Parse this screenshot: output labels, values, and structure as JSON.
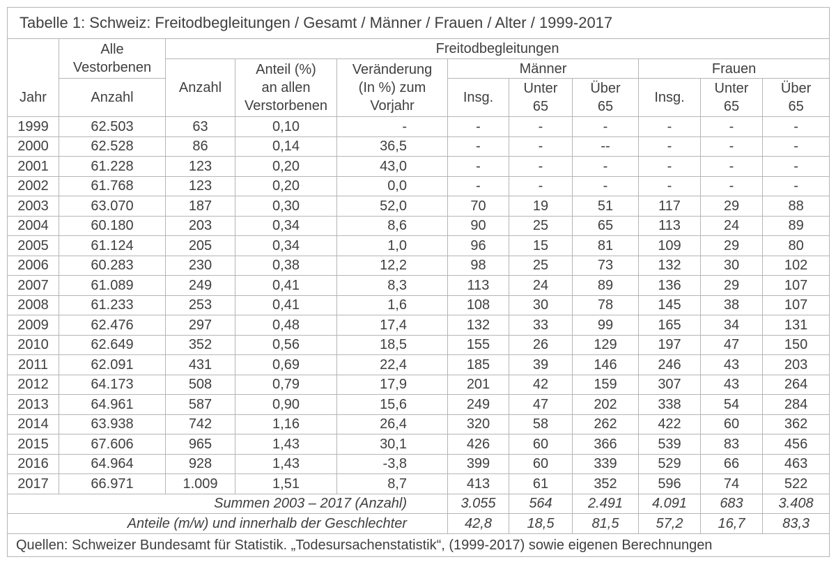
{
  "colors": {
    "text": "#3f3f3f",
    "border": "#b5b5b5"
  },
  "title": "Tabelle 1: Schweiz: Freitodbegleitungen / Gesamt / Männer / Frauen / Alter / 1999-2017",
  "header": {
    "jahr": "Jahr",
    "alle_verstorbenen": "Alle\nVestorbenen",
    "alle_anzahl": "Anzahl",
    "freitodbegleitungen": "Freitodbegleitungen",
    "anzahl": "Anzahl",
    "anteil": "Anteil (%)\nan allen\nVerstorbenen",
    "veraenderung": "Veränderung\n(In %) zum\nVorjahr",
    "maenner": "Männer",
    "frauen": "Frauen",
    "insg_m": "Insg.",
    "unter65_m": "Unter\n65",
    "ueber65_m": "Über\n65",
    "insg_f": "Insg.",
    "unter65_f": "Unter\n65",
    "ueber65_f": "Über\n65"
  },
  "rows": [
    [
      "1999",
      "62.503",
      "63",
      "0,10",
      "-",
      "-",
      "-",
      "-",
      "-",
      "-",
      "-"
    ],
    [
      "2000",
      "62.528",
      "86",
      "0,14",
      "36,5",
      "-",
      "-",
      "--",
      "-",
      "-",
      "-"
    ],
    [
      "2001",
      "61.228",
      "123",
      "0,20",
      "43,0",
      "-",
      "-",
      "-",
      "-",
      "-",
      "-"
    ],
    [
      "2002",
      "61.768",
      "123",
      "0,20",
      "0,0",
      "-",
      "-",
      "-",
      "-",
      "-",
      "-"
    ],
    [
      "2003",
      "63.070",
      "187",
      "0,30",
      "52,0",
      "70",
      "19",
      "51",
      "117",
      "29",
      "88"
    ],
    [
      "2004",
      "60.180",
      "203",
      "0,34",
      "8,6",
      "90",
      "25",
      "65",
      "113",
      "24",
      "89"
    ],
    [
      "2005",
      "61.124",
      "205",
      "0,34",
      "1,0",
      "96",
      "15",
      "81",
      "109",
      "29",
      "80"
    ],
    [
      "2006",
      "60.283",
      "230",
      "0,38",
      "12,2",
      "98",
      "25",
      "73",
      "132",
      "30",
      "102"
    ],
    [
      "2007",
      "61.089",
      "249",
      "0,41",
      "8,3",
      "113",
      "24",
      "89",
      "136",
      "29",
      "107"
    ],
    [
      "2008",
      "61.233",
      "253",
      "0,41",
      "1,6",
      "108",
      "30",
      "78",
      "145",
      "38",
      "107"
    ],
    [
      "2009",
      "62.476",
      "297",
      "0,48",
      "17,4",
      "132",
      "33",
      "99",
      "165",
      "34",
      "131"
    ],
    [
      "2010",
      "62.649",
      "352",
      "0,56",
      "18,5",
      "155",
      "26",
      "129",
      "197",
      "47",
      "150"
    ],
    [
      "2011",
      "62.091",
      "431",
      "0,69",
      "22,4",
      "185",
      "39",
      "146",
      "246",
      "43",
      "203"
    ],
    [
      "2012",
      "64.173",
      "508",
      "0,79",
      "17,9",
      "201",
      "42",
      "159",
      "307",
      "43",
      "264"
    ],
    [
      "2013",
      "64.961",
      "587",
      "0,90",
      "15,6",
      "249",
      "47",
      "202",
      "338",
      "54",
      "284"
    ],
    [
      "2014",
      "63.938",
      "742",
      "1,16",
      "26,4",
      "320",
      "58",
      "262",
      "422",
      "60",
      "362"
    ],
    [
      "2015",
      "67.606",
      "965",
      "1,43",
      "30,1",
      "426",
      "60",
      "366",
      "539",
      "83",
      "456"
    ],
    [
      "2016",
      "64.964",
      "928",
      "1,43",
      "-3,8",
      "399",
      "60",
      "339",
      "529",
      "66",
      "463"
    ],
    [
      "2017",
      "66.971",
      "1.009",
      "1,51",
      "8,7",
      "413",
      "61",
      "352",
      "596",
      "74",
      "522"
    ]
  ],
  "summaries": [
    {
      "label": "Summen 2003 – 2017 (Anzahl)",
      "values": [
        "3.055",
        "564",
        "2.491",
        "4.091",
        "683",
        "3.408"
      ]
    },
    {
      "label": "Anteile (m/w) und innerhalb der Geschlechter",
      "values": [
        "42,8",
        "18,5",
        "81,5",
        "57,2",
        "16,7",
        "83,3"
      ]
    }
  ],
  "footer": "Quellen: Schweizer Bundesamt für Statistik. „Todesursachenstatistik“, (1999-2017) sowie eigenen Berechnungen"
}
